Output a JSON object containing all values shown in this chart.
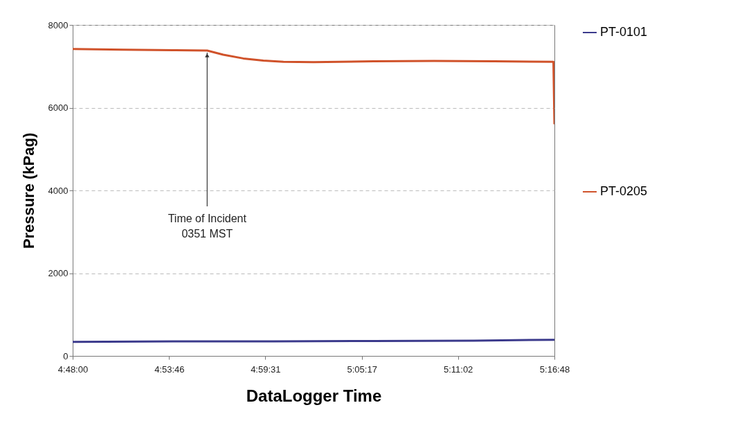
{
  "chart_data": {
    "type": "line",
    "xlabel": "DataLogger Time",
    "ylabel": "Pressure (kPag)",
    "xlim": [
      4.8,
      5.28
    ],
    "xticks": [
      {
        "value": 4.8,
        "label": "4:48:00"
      },
      {
        "value": 4.896111,
        "label": "4:53:46"
      },
      {
        "value": 4.991944,
        "label": "4:59:31"
      },
      {
        "value": 5.088056,
        "label": "5:05:17"
      },
      {
        "value": 5.183889,
        "label": "5:11:02"
      },
      {
        "value": 5.28,
        "label": "5:16:48"
      }
    ],
    "ylim": [
      0,
      8000
    ],
    "yticks": [
      0,
      2000,
      4000,
      6000,
      8000
    ],
    "grid": "y",
    "legend": "right",
    "series": [
      {
        "name": "PT-0101",
        "color": "#3b3a8c",
        "x": [
          4.8,
          4.9,
          5.0,
          5.1,
          5.2,
          5.28
        ],
        "values": [
          340,
          350,
          350,
          360,
          370,
          390
        ]
      },
      {
        "name": "PT-0205",
        "color": "#d0522a",
        "x": [
          4.8,
          4.85,
          4.9,
          4.934,
          4.95,
          4.97,
          4.99,
          5.01,
          5.04,
          5.1,
          5.16,
          5.22,
          5.279,
          5.28
        ],
        "values": [
          7420,
          7400,
          7390,
          7380,
          7280,
          7190,
          7140,
          7110,
          7100,
          7120,
          7130,
          7120,
          7110,
          5600
        ]
      }
    ],
    "annotations": [
      {
        "text": "Time of Incident\n0351 MST",
        "x": 4.934,
        "y": 7330
      }
    ]
  }
}
